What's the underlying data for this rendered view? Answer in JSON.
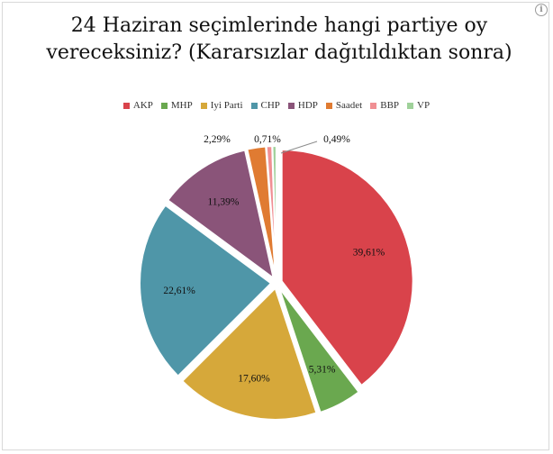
{
  "info_icon": "i",
  "chart_data": {
    "type": "pie",
    "title": "24 Haziran seçimlerinde hangi partiye oy vereceksiniz? (Kararsızlar dağıtıldıktan sonra)",
    "legend_position": "top",
    "series": [
      {
        "name": "AKP",
        "value": 39.61,
        "label": "39,61%",
        "color": "#d9434b"
      },
      {
        "name": "MHP",
        "value": 5.31,
        "label": "5,31%",
        "color": "#6aa84f"
      },
      {
        "name": "Iyi Parti",
        "value": 17.6,
        "label": "17,60%",
        "color": "#d6a83a"
      },
      {
        "name": "CHP",
        "value": 22.61,
        "label": "22,61%",
        "color": "#4f96a8"
      },
      {
        "name": "HDP",
        "value": 11.39,
        "label": "11,39%",
        "color": "#8a5479"
      },
      {
        "name": "Saadet",
        "value": 2.29,
        "label": "2,29%",
        "color": "#e07b32"
      },
      {
        "name": "BBP",
        "value": 0.71,
        "label": "0,71%",
        "color": "#f08f93"
      },
      {
        "name": "VP",
        "value": 0.49,
        "label": "0,49%",
        "color": "#9fd19a"
      }
    ]
  }
}
